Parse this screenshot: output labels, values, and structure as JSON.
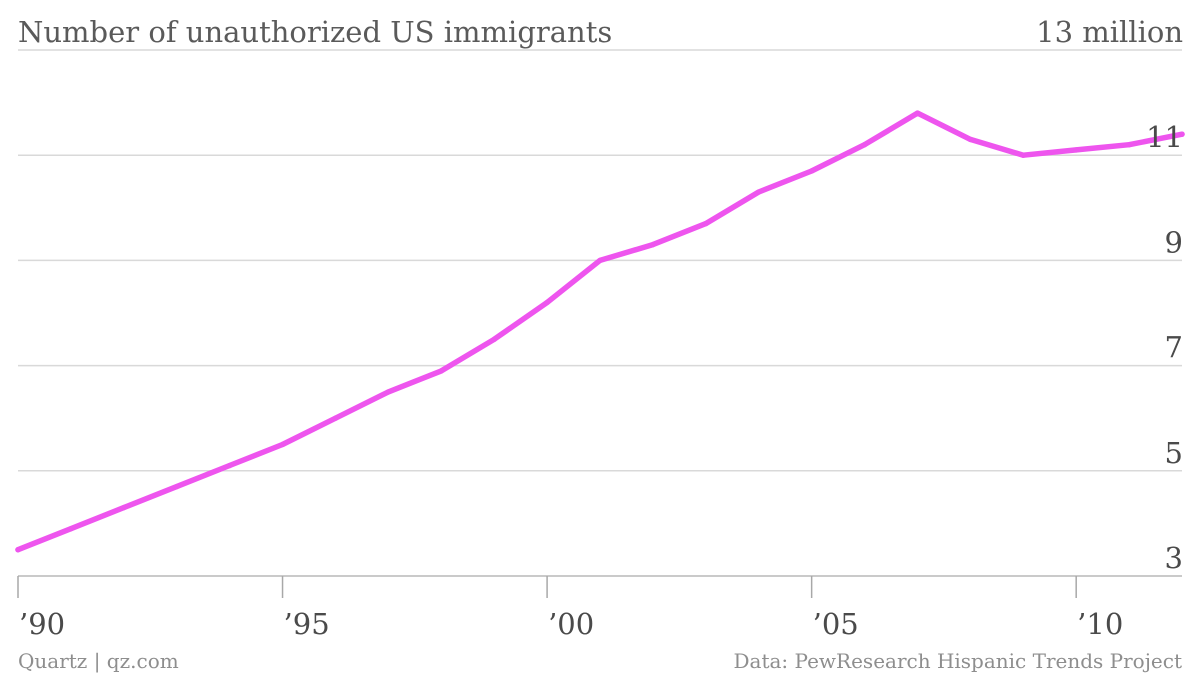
{
  "chart_data": {
    "type": "line",
    "title": "Number of unauthorized US immigrants",
    "unit_label": "13 million",
    "x": [
      1990,
      1991,
      1992,
      1993,
      1994,
      1995,
      1996,
      1997,
      1998,
      1999,
      2000,
      2001,
      2002,
      2003,
      2004,
      2005,
      2006,
      2007,
      2008,
      2009,
      2010,
      2011,
      2012
    ],
    "series": [
      {
        "values": [
          3.5,
          3.9,
          4.3,
          4.7,
          5.1,
          5.5,
          6.0,
          6.5,
          6.9,
          7.5,
          8.2,
          9.0,
          9.3,
          9.7,
          10.3,
          10.7,
          11.2,
          11.8,
          11.3,
          11.0,
          11.1,
          11.2,
          11.4
        ]
      }
    ],
    "x_ticks": [
      1990,
      1995,
      2000,
      2005,
      2010
    ],
    "x_tick_labels": [
      "’90",
      "’95",
      "’00",
      "’05",
      "’10"
    ],
    "y_ticks": [
      3,
      5,
      7,
      9,
      11
    ],
    "y_tick_labels": [
      "3",
      "5",
      "7",
      "9",
      "11"
    ],
    "xlim": [
      1990,
      2012
    ],
    "ylim": [
      3,
      13
    ],
    "grid": true,
    "line_color": "#ee55ee"
  },
  "footer": {
    "source_left": "Quartz | qz.com",
    "source_right": "Data: PewResearch Hispanic Trends Project"
  }
}
